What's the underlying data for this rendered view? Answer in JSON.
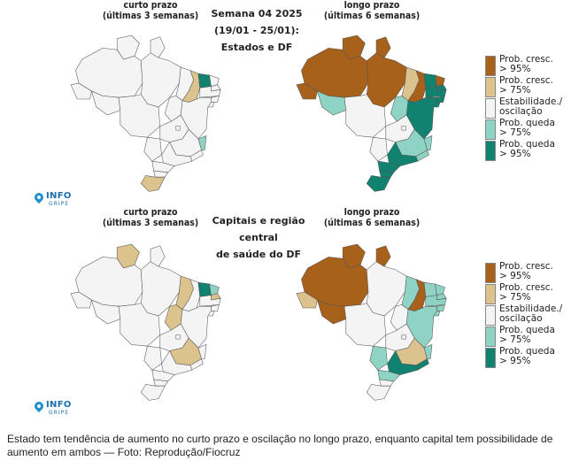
{
  "colors": {
    "prob_cresc_95": "#a8611b",
    "prob_cresc_75": "#dcc28c",
    "estabilidade": "#f4f4f4",
    "prob_queda_75": "#8fd3c5",
    "prob_queda_95": "#11826f",
    "border": "#555555"
  },
  "top_panel": {
    "left_title_line1": "curto prazo",
    "left_title_line2": "(últimas 3 semanas)",
    "center_title_line1": "Semana 04 2025",
    "center_title_line2": "(19/01 - 25/01):",
    "center_title_line3": "Estados e DF",
    "right_title_line1": "longo prazo",
    "right_title_line2": "(últimas 6 semanas)"
  },
  "bottom_panel": {
    "left_title_line1": "curto prazo",
    "left_title_line2": "(últimas 3 semanas)",
    "center_title_line1": "Capitais e região central",
    "center_title_line2": "de saúde do DF",
    "right_title_line1": "longo prazo",
    "right_title_line2": "(últimas 6 semanas)"
  },
  "legend": [
    {
      "line1": "Prob. cresc.",
      "line2": "> 95%",
      "color": "#a8611b"
    },
    {
      "line1": "Prob. cresc.",
      "line2": "> 75%",
      "color": "#dcc28c"
    },
    {
      "line1": "Estabilidade./",
      "line2": "oscilação",
      "color": "#f4f4f4"
    },
    {
      "line1": "Prob. queda",
      "line2": "> 75%",
      "color": "#8fd3c5"
    },
    {
      "line1": "Prob. queda",
      "line2": "> 95%",
      "color": "#11826f"
    }
  ],
  "logo": {
    "main": "INFO",
    "sub": "GRIPE"
  },
  "maps": {
    "top_short": {
      "AC": "w",
      "AM": "w",
      "RR": "w",
      "AP": "w",
      "PA": "w",
      "RO": "w",
      "MT": "w",
      "MA": "w",
      "PI": "t",
      "CE": "q95",
      "RN": "w",
      "PB": "w",
      "PE": "w",
      "AL": "w",
      "SE": "w",
      "BA": "w",
      "TO": "w",
      "GO": "w",
      "DF": "w",
      "MS": "w",
      "MG": "w",
      "ES": "q75",
      "RJ": "w",
      "SP": "w",
      "PR": "w",
      "SC": "w",
      "RS": "t"
    },
    "top_long": {
      "AC": "b",
      "AM": "b",
      "RR": "b",
      "AP": "b",
      "PA": "b",
      "RO": "q75",
      "MT": "w",
      "MA": "t",
      "PI": "b",
      "CE": "q95",
      "RN": "b",
      "PB": "q95",
      "PE": "q95",
      "AL": "q95",
      "SE": "q95",
      "BA": "q95",
      "TO": "q75",
      "GO": "w",
      "DF": "w",
      "MS": "w",
      "MG": "q75",
      "ES": "q75",
      "RJ": "q75",
      "SP": "q95",
      "PR": "q95",
      "SC": "q95",
      "RS": "q95"
    },
    "bottom_short": {
      "AC": "w",
      "AM": "w",
      "RR": "t",
      "AP": "w",
      "PA": "w",
      "RO": "w",
      "MT": "w",
      "MA": "t",
      "PI": "w",
      "CE": "q95",
      "RN": "q75",
      "PB": "t",
      "PE": "w",
      "AL": "w",
      "SE": "w",
      "BA": "w",
      "TO": "t",
      "GO": "w",
      "DF": "w",
      "MS": "w",
      "MG": "t",
      "ES": "w",
      "RJ": "w",
      "SP": "w",
      "PR": "w",
      "SC": "w",
      "RS": "w"
    },
    "bottom_long": {
      "AC": "t",
      "AM": "b",
      "RR": "b",
      "AP": "b",
      "PA": "w",
      "RO": "b",
      "MT": "w",
      "MA": "q75",
      "PI": "b",
      "CE": "q75",
      "RN": "q75",
      "PB": "q75",
      "PE": "q75",
      "AL": "q75",
      "SE": "q75",
      "BA": "q75",
      "TO": "w",
      "GO": "w",
      "DF": "w",
      "MS": "q75",
      "MG": "t",
      "ES": "q75",
      "RJ": "q95",
      "SP": "q95",
      "PR": "q75",
      "SC": "w",
      "RS": "w"
    }
  },
  "caption": "Estado tem tendência de aumento no curto prazo e oscilação no longo prazo, enquanto capital tem possibilidade de aumento em ambos — Foto: Reprodução/Fiocruz"
}
